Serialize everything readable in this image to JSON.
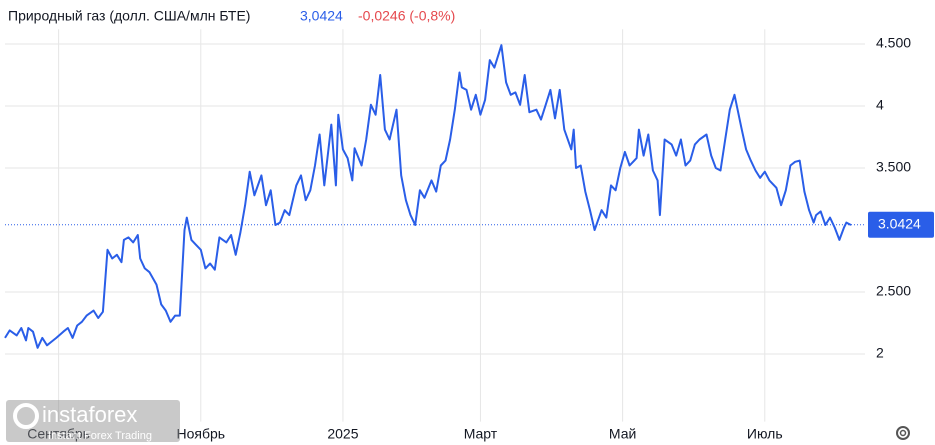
{
  "chart_data": {
    "type": "line",
    "title": "Природный газ (долл. США/млн БТЕ)",
    "price": "3,0424",
    "change": "-0,0246 (-0,8%)",
    "watermark": "instaforex",
    "watermark_subtitle": "Instant Forex Trading",
    "color": "#2a5ee8",
    "price_color": "#2a5ee8",
    "change_color": "#e5484d",
    "grid": true,
    "last_price": 3.0424,
    "xlim": [
      -23,
      346
    ],
    "ylim": [
      1.6,
      4.7
    ],
    "xticks": [
      {
        "value": 0,
        "label": "Сентябрь"
      },
      {
        "value": 61,
        "label": "Ноябрь"
      },
      {
        "value": 122,
        "label": "2025"
      },
      {
        "value": 181,
        "label": "Март"
      },
      {
        "value": 242,
        "label": "Май"
      },
      {
        "value": 303,
        "label": "Июль"
      }
    ],
    "yticks": [
      2,
      {
        "value": 2.5,
        "label": "2.500"
      },
      {
        "value": 3.5,
        "label": "3.500"
      },
      4,
      {
        "value": 4.5,
        "label": "4.500"
      }
    ],
    "x": [
      -23,
      -21,
      -18,
      -16,
      -14,
      -13,
      -11,
      -9,
      -7,
      -5,
      -3,
      -1,
      2,
      4,
      6,
      8,
      10,
      12,
      15,
      17,
      19,
      21,
      23,
      25,
      27,
      28,
      30,
      32,
      34,
      35,
      37,
      39,
      42,
      44,
      46,
      48,
      50,
      52,
      54,
      55,
      57,
      59,
      61,
      63,
      65,
      67,
      69,
      72,
      74,
      76,
      78,
      80,
      82,
      84,
      87,
      89,
      91,
      93,
      95,
      97,
      99,
      102,
      104,
      106,
      108,
      110,
      112,
      114,
      117,
      119,
      120,
      122,
      124,
      126,
      127,
      130,
      132,
      134,
      136,
      138,
      140,
      142,
      145,
      147,
      149,
      151,
      153,
      155,
      157,
      160,
      162,
      164,
      166,
      168,
      170,
      172,
      173,
      175,
      177,
      179,
      181,
      183,
      185,
      187,
      190,
      192,
      194,
      196,
      198,
      200,
      202,
      205,
      207,
      209,
      211,
      213,
      215,
      217,
      220,
      221,
      222,
      224,
      226,
      228,
      230,
      233,
      235,
      237,
      239,
      241,
      243,
      245,
      248,
      249,
      251,
      253,
      255,
      257,
      258,
      260,
      263,
      265,
      267,
      269,
      271,
      273,
      275,
      278,
      280,
      282,
      284,
      286,
      288,
      290,
      293,
      295,
      297,
      299,
      301,
      303,
      305,
      308,
      310,
      312,
      314,
      316,
      318,
      320,
      322,
      324,
      325,
      327,
      329,
      331,
      333,
      335,
      337,
      338,
      340
    ],
    "values": [
      2.13,
      2.19,
      2.15,
      2.21,
      2.11,
      2.21,
      2.18,
      2.05,
      2.13,
      2.07,
      2.1,
      2.13,
      2.18,
      2.21,
      2.13,
      2.23,
      2.26,
      2.31,
      2.35,
      2.29,
      2.34,
      2.84,
      2.77,
      2.8,
      2.74,
      2.92,
      2.94,
      2.9,
      2.96,
      2.77,
      2.69,
      2.66,
      2.56,
      2.4,
      2.35,
      2.26,
      2.31,
      2.31,
      3.0,
      3.1,
      2.92,
      2.88,
      2.84,
      2.69,
      2.73,
      2.68,
      2.94,
      2.9,
      2.96,
      2.8,
      2.98,
      3.2,
      3.47,
      3.28,
      3.44,
      3.2,
      3.32,
      3.04,
      3.06,
      3.16,
      3.12,
      3.36,
      3.44,
      3.24,
      3.32,
      3.52,
      3.77,
      3.36,
      3.85,
      3.36,
      3.93,
      3.65,
      3.58,
      3.4,
      3.66,
      3.52,
      3.73,
      4.01,
      3.93,
      4.25,
      3.81,
      3.73,
      3.97,
      3.44,
      3.24,
      3.12,
      3.04,
      3.32,
      3.26,
      3.4,
      3.31,
      3.52,
      3.56,
      3.73,
      3.97,
      4.27,
      4.15,
      4.13,
      3.97,
      4.09,
      3.93,
      4.05,
      4.37,
      4.31,
      4.49,
      4.19,
      4.09,
      4.11,
      4.01,
      4.25,
      3.95,
      3.97,
      3.89,
      4.01,
      4.13,
      3.9,
      4.13,
      3.81,
      3.65,
      3.81,
      3.5,
      3.52,
      3.31,
      3.16,
      3.0,
      3.16,
      3.1,
      3.36,
      3.32,
      3.5,
      3.63,
      3.52,
      3.58,
      3.81,
      3.6,
      3.77,
      3.48,
      3.4,
      3.12,
      3.73,
      3.69,
      3.6,
      3.73,
      3.52,
      3.56,
      3.69,
      3.73,
      3.77,
      3.6,
      3.5,
      3.48,
      3.73,
      3.97,
      4.09,
      3.82,
      3.65,
      3.56,
      3.48,
      3.42,
      3.47,
      3.4,
      3.34,
      3.2,
      3.32,
      3.52,
      3.55,
      3.56,
      3.31,
      3.16,
      3.06,
      3.12,
      3.15,
      3.04,
      3.1,
      3.02,
      2.92,
      3.02,
      3.06,
      3.04
    ]
  }
}
